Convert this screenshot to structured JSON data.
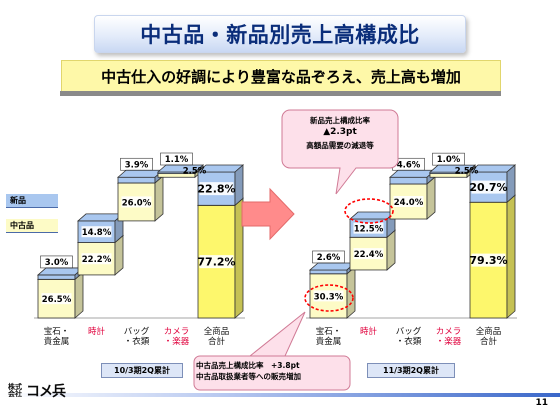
{
  "slide": {
    "title": "中古品・新品別売上高構成比",
    "subtitle": "中古仕入の好調により豊富な品ぞろえ、売上高も増加",
    "page_number": "11"
  },
  "legend": {
    "new": "新品",
    "used": "中古品"
  },
  "colors": {
    "used": "#fdfbc6",
    "new": "#a9c7ef",
    "total_used": "#fdf76c",
    "total_new": "#a9c7ef",
    "callout": "#fde0ea",
    "callout_border": "#ff0000"
  },
  "categories": [
    "宝石・\n貴金属",
    "時計",
    "バッグ\n・衣類",
    "カメラ\n・楽器",
    "全商品\n合計"
  ],
  "periods": {
    "before": "10/3期2Q累計",
    "after": "11/3期2Q累計"
  },
  "chart_data": {
    "type": "bar",
    "stacked": true,
    "waterfall": true,
    "categories": [
      "宝石・貴金属",
      "時計",
      "バッグ・衣類",
      "カメラ・楽器",
      "全商品合計"
    ],
    "groups": [
      {
        "period": "10/3期2Q累計",
        "used": [
          26.5,
          22.2,
          26.0,
          2.5,
          77.2
        ],
        "new": [
          3.0,
          14.8,
          3.9,
          1.1,
          22.8
        ],
        "used_labels": [
          "26.5%",
          "22.2%",
          "26.0%",
          "2.5%",
          "77.2%"
        ],
        "new_labels": [
          "3.0%",
          "14.8%",
          "3.9%",
          "1.1%",
          "22.8%"
        ]
      },
      {
        "period": "11/3期2Q累計",
        "used": [
          30.3,
          22.4,
          24.0,
          2.5,
          79.3
        ],
        "new": [
          2.6,
          12.5,
          4.6,
          1.0,
          20.7
        ],
        "used_labels": [
          "30.3%",
          "22.4%",
          "24.0%",
          "2.5%",
          "79.3%"
        ],
        "new_labels": [
          "2.6%",
          "12.5%",
          "4.6%",
          "1.0%",
          "20.7%"
        ]
      }
    ]
  },
  "callouts": {
    "top": [
      "新品売上構成比率",
      "▲2.3pt",
      "高額品需要の減退等"
    ],
    "bottom": [
      "中古品売上構成比率　+3.8pt",
      "中古品取扱業者等への販売増加"
    ]
  },
  "logo": {
    "small": "株式\n会社",
    "big": "コメ兵"
  }
}
